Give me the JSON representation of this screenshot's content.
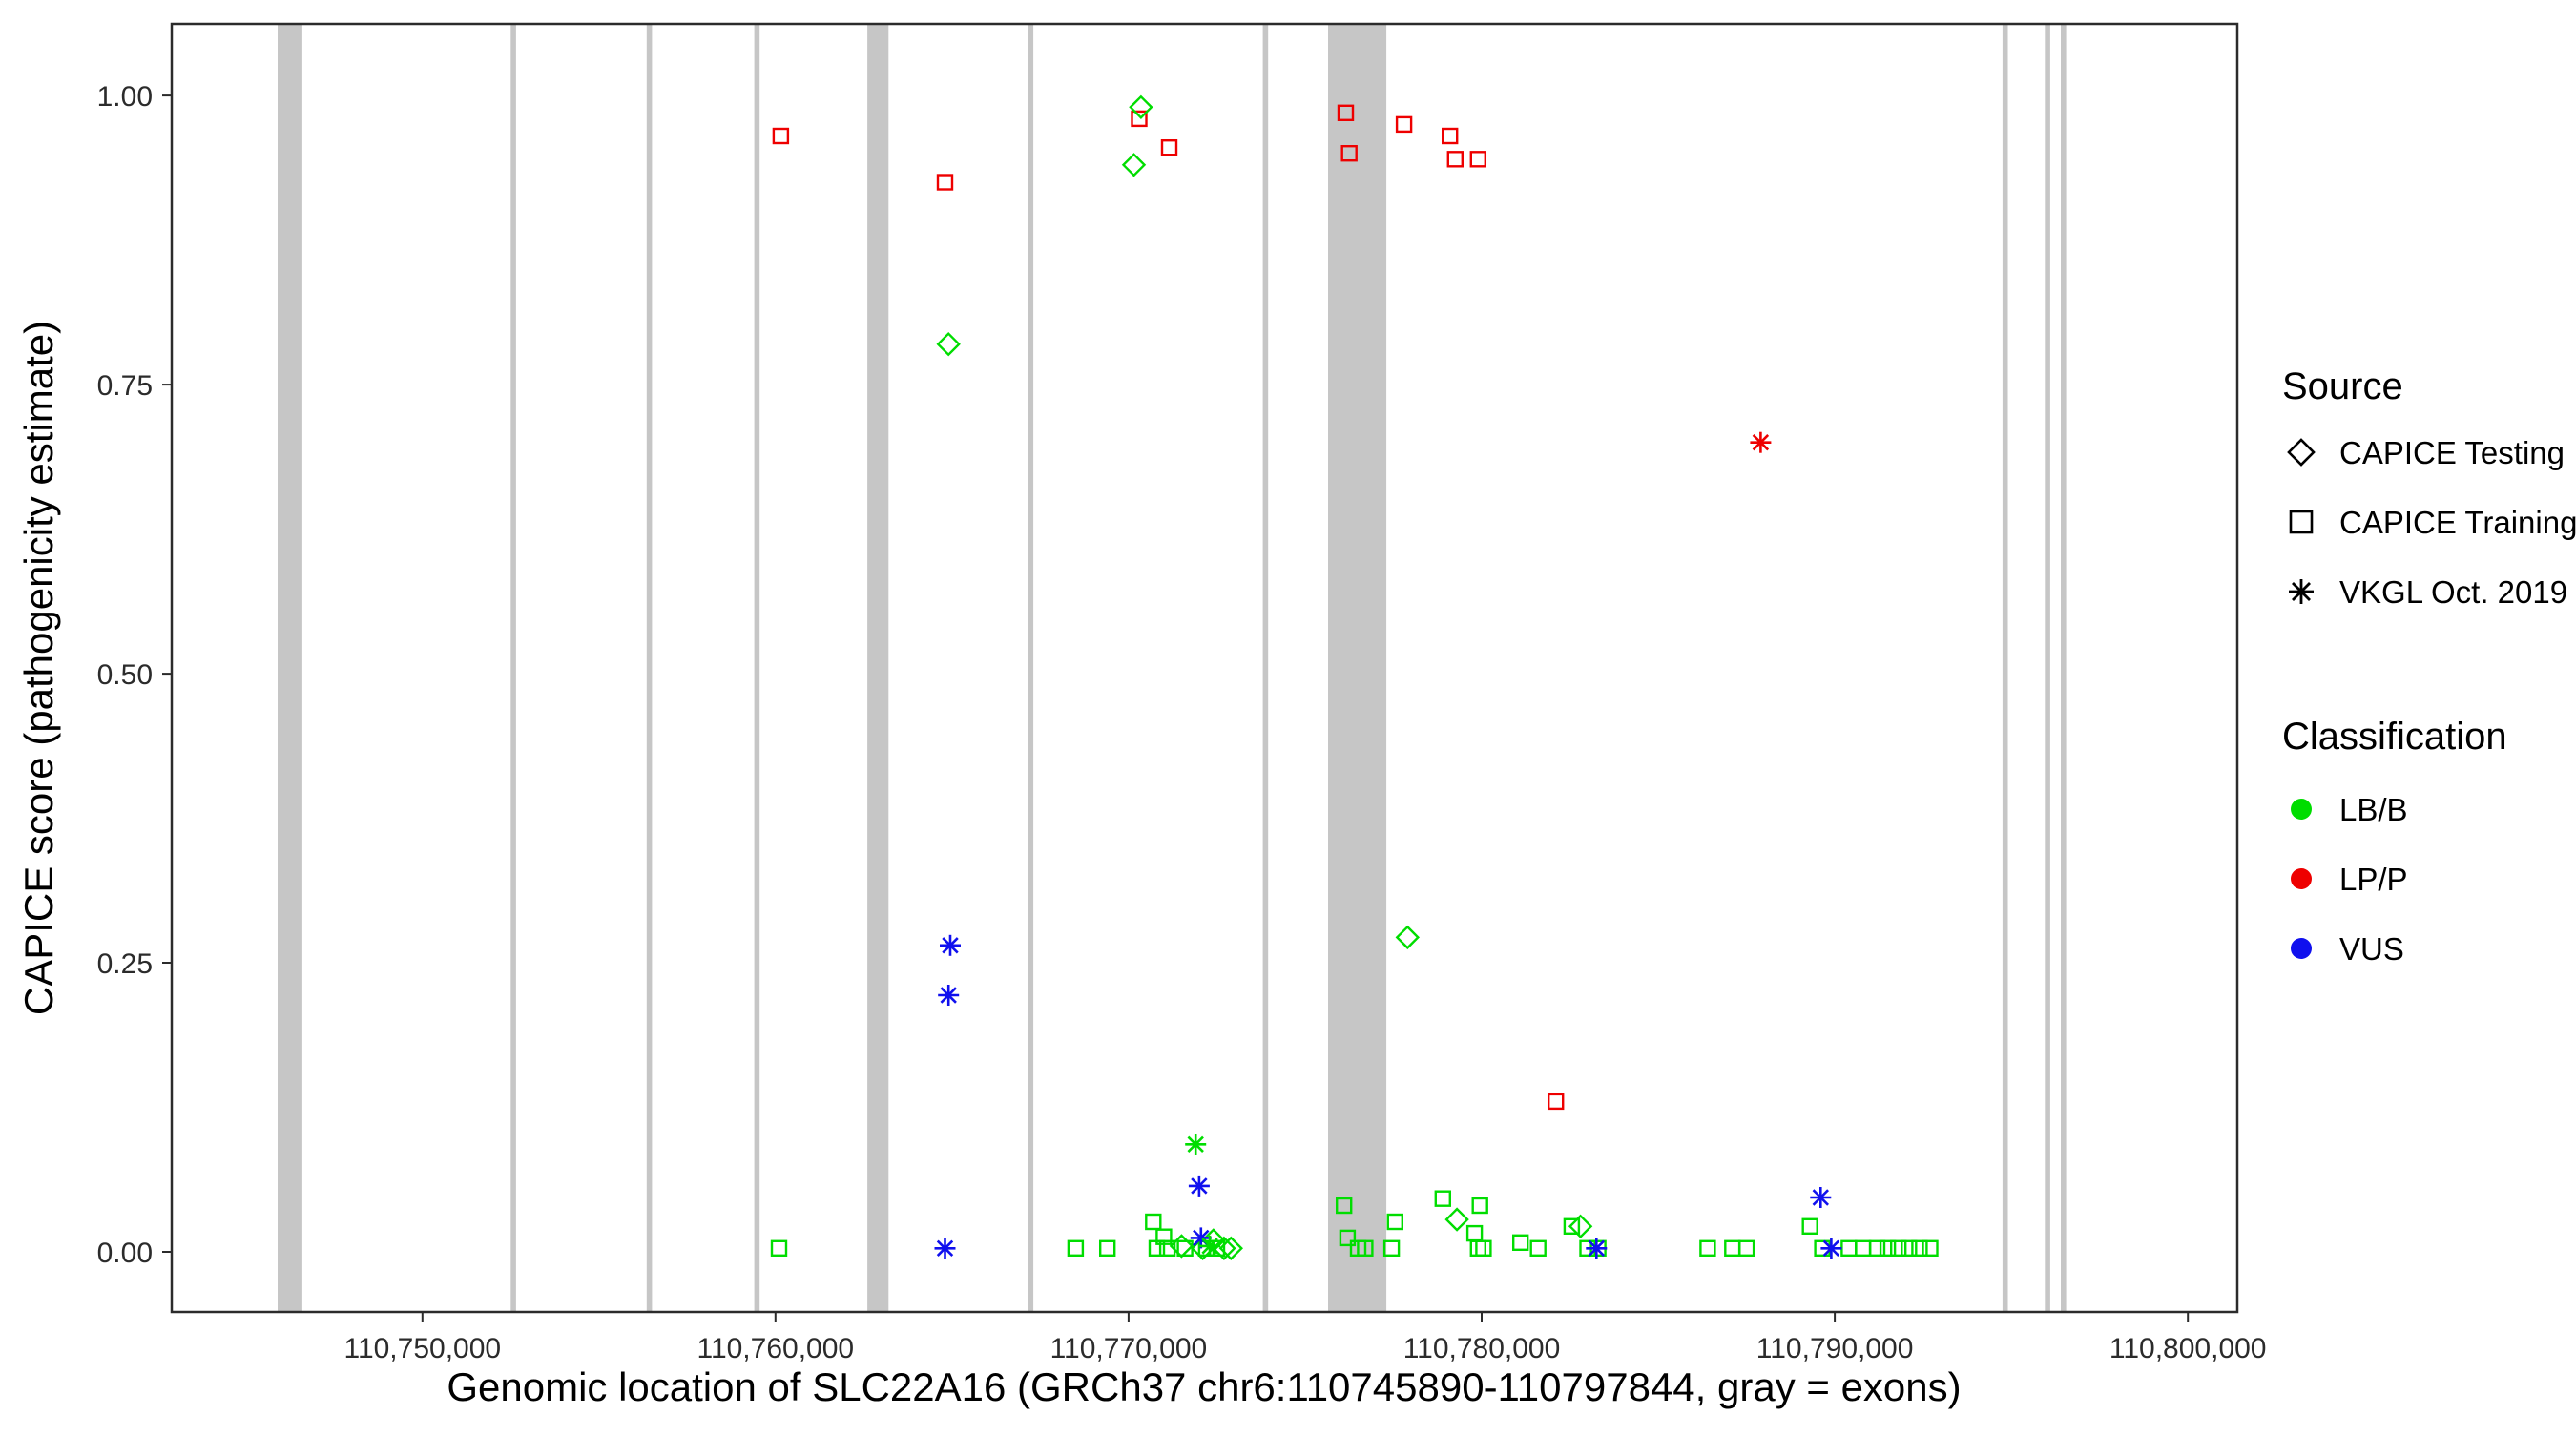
{
  "chart_data": {
    "type": "scatter",
    "title": "",
    "xlabel": "Genomic location of SLC22A16 (GRCh37 chr6:110745890-110797844, gray = exons)",
    "ylabel": "CAPICE score (pathogenicity estimate)",
    "grid": false,
    "legend_position": "right",
    "xlim": [
      110742900,
      110801400
    ],
    "ylim": [
      -0.052,
      1.062
    ],
    "x_ticks": [
      110750000,
      110760000,
      110770000,
      110780000,
      110790000,
      110800000
    ],
    "x_tick_labels": [
      "110,750,000",
      "110,760,000",
      "110,770,000",
      "110,780,000",
      "110,790,000",
      "110,800,000"
    ],
    "y_ticks": [
      0,
      0.25,
      0.5,
      0.75,
      1.0
    ],
    "y_tick_labels": [
      "0.00",
      "0.25",
      "0.50",
      "0.75",
      "1.00"
    ],
    "exon_color": "#c6c6c6",
    "exons": [
      [
        110745900,
        110746600
      ],
      [
        110752500,
        110752650
      ],
      [
        110756350,
        110756500
      ],
      [
        110759400,
        110759550
      ],
      [
        110762600,
        110763200
      ],
      [
        110767150,
        110767300
      ],
      [
        110773800,
        110773950
      ],
      [
        110775650,
        110777300
      ],
      [
        110794750,
        110794900
      ],
      [
        110795950,
        110796100
      ],
      [
        110796400,
        110796550
      ]
    ],
    "classification_colors": {
      "LB/B": "#00DD00",
      "LP/P": "#EE0000",
      "VUS": "#1010EE"
    },
    "legend": {
      "source_title": "Source",
      "source_items": [
        {
          "label": "CAPICE Testing",
          "symbol": "diamond"
        },
        {
          "label": "CAPICE Training",
          "symbol": "square"
        },
        {
          "label": "VKGL Oct. 2019",
          "symbol": "asterisk"
        }
      ],
      "classification_title": "Classification",
      "classification_items": [
        {
          "label": "LB/B",
          "color": "#00DD00"
        },
        {
          "label": "LP/P",
          "color": "#EE0000"
        },
        {
          "label": "VUS",
          "color": "#1010EE"
        }
      ]
    },
    "series": [
      {
        "name": "CAPICE Training LP/P",
        "symbol": "square",
        "classification": "LP/P",
        "points": [
          [
            110760150,
            0.965
          ],
          [
            110764800,
            0.925
          ],
          [
            110770300,
            0.98
          ],
          [
            110771150,
            0.955
          ],
          [
            110776150,
            0.985
          ],
          [
            110776250,
            0.95
          ],
          [
            110777800,
            0.975
          ],
          [
            110779100,
            0.965
          ],
          [
            110779250,
            0.945
          ],
          [
            110779900,
            0.945
          ],
          [
            110782100,
            0.13
          ]
        ]
      },
      {
        "name": "CAPICE Training LB/B",
        "symbol": "square",
        "classification": "LB/B",
        "points": [
          [
            110760100,
            0.003
          ],
          [
            110768500,
            0.003
          ],
          [
            110769400,
            0.003
          ],
          [
            110770700,
            0.026
          ],
          [
            110770800,
            0.003
          ],
          [
            110771000,
            0.013
          ],
          [
            110771100,
            0.003
          ],
          [
            110771600,
            0.003
          ],
          [
            110772200,
            0.003
          ],
          [
            110772500,
            0.003
          ],
          [
            110776100,
            0.04
          ],
          [
            110776200,
            0.012
          ],
          [
            110776500,
            0.003
          ],
          [
            110776700,
            0.003
          ],
          [
            110777450,
            0.003
          ],
          [
            110777550,
            0.026
          ],
          [
            110778900,
            0.046
          ],
          [
            110779800,
            0.016
          ],
          [
            110779900,
            0.003
          ],
          [
            110779950,
            0.04
          ],
          [
            110780050,
            0.003
          ],
          [
            110781100,
            0.008
          ],
          [
            110781600,
            0.003
          ],
          [
            110782550,
            0.022
          ],
          [
            110783000,
            0.003
          ],
          [
            110783300,
            0.003
          ],
          [
            110786400,
            0.003
          ],
          [
            110787100,
            0.003
          ],
          [
            110787500,
            0.003
          ],
          [
            110789300,
            0.022
          ],
          [
            110789650,
            0.003
          ],
          [
            110790400,
            0.003
          ],
          [
            110790800,
            0.003
          ],
          [
            110791200,
            0.003
          ],
          [
            110791500,
            0.003
          ],
          [
            110791800,
            0.003
          ],
          [
            110792100,
            0.003
          ],
          [
            110792400,
            0.003
          ],
          [
            110792700,
            0.003
          ]
        ]
      },
      {
        "name": "CAPICE Testing LB/B",
        "symbol": "diamond",
        "classification": "LB/B",
        "points": [
          [
            110764900,
            0.785
          ],
          [
            110770150,
            0.94
          ],
          [
            110770350,
            0.99
          ],
          [
            110777900,
            0.272
          ],
          [
            110779300,
            0.028
          ],
          [
            110782800,
            0.022
          ],
          [
            110771500,
            0.005
          ],
          [
            110772100,
            0.003
          ],
          [
            110772400,
            0.01
          ],
          [
            110772700,
            0.003
          ],
          [
            110772900,
            0.003
          ]
        ]
      },
      {
        "name": "VKGL Oct. 2019 VUS",
        "symbol": "asterisk",
        "classification": "VUS",
        "points": [
          [
            110764950,
            0.265
          ],
          [
            110764900,
            0.222
          ],
          [
            110764800,
            0.003
          ],
          [
            110772000,
            0.057
          ],
          [
            110772050,
            0.012
          ],
          [
            110783250,
            0.003
          ],
          [
            110789600,
            0.047
          ],
          [
            110789900,
            0.003
          ]
        ]
      },
      {
        "name": "VKGL Oct. 2019 LB/B",
        "symbol": "asterisk",
        "classification": "LB/B",
        "points": [
          [
            110771900,
            0.093
          ],
          [
            110772300,
            0.005
          ]
        ]
      },
      {
        "name": "VKGL Oct. 2019 LP/P",
        "symbol": "asterisk",
        "classification": "LP/P",
        "points": [
          [
            110787900,
            0.7
          ]
        ]
      }
    ]
  }
}
